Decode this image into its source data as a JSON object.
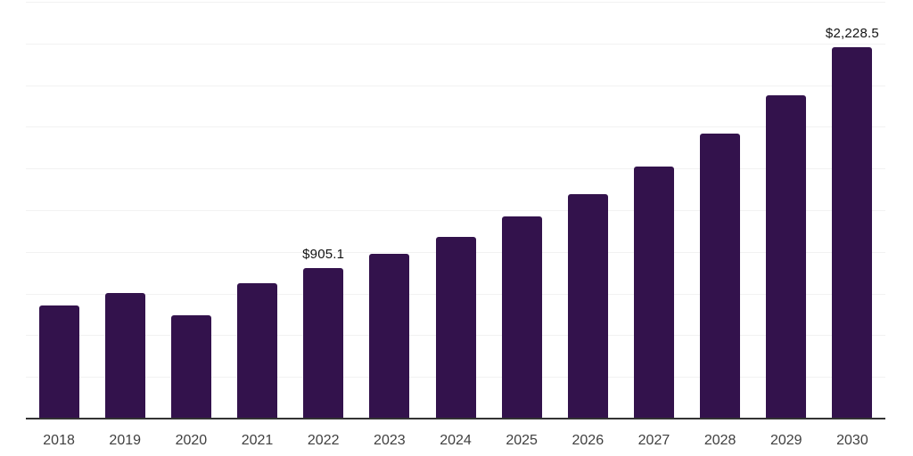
{
  "chart_data": {
    "type": "bar",
    "title": "",
    "xlabel": "",
    "ylabel": "",
    "categories": [
      "2018",
      "2019",
      "2020",
      "2021",
      "2022",
      "2023",
      "2024",
      "2025",
      "2026",
      "2027",
      "2028",
      "2029",
      "2030"
    ],
    "values": [
      680,
      755,
      620,
      810,
      905.1,
      988,
      1090,
      1212,
      1345,
      1510,
      1710,
      1937,
      2228.5
    ],
    "bar_labels": [
      "",
      "",
      "",
      "",
      "$905.1",
      "",
      "",
      "",
      "",
      "",
      "",
      "",
      "$2,228.5"
    ],
    "ylim": [
      0,
      2500
    ],
    "y_gridline_step": 250,
    "y_axis_tick_labels_visible": false,
    "grid": "horizontal",
    "legend": "none",
    "colors": {
      "bar": "#33124C",
      "gridline": "#F2F2F2",
      "axis_line": "#333333",
      "tick_label": "#404040",
      "value_label": "#121212",
      "background": "#FFFFFF"
    }
  }
}
